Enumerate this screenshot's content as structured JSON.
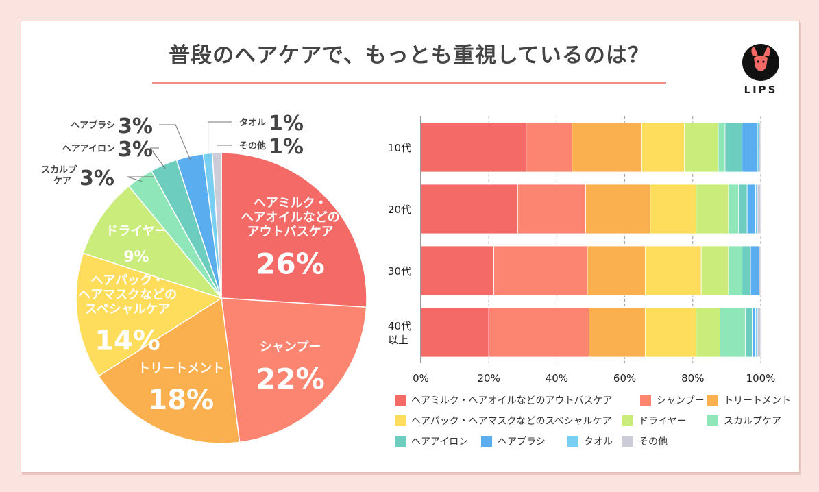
{
  "title": "普段のヘアケアで、もっとも重視しているのは？",
  "logo": {
    "text": "LIPS",
    "icon": "deer-face-icon"
  },
  "chart_data": [
    {
      "type": "pie",
      "slices": [
        {
          "label": "ヘアミルク・ヘアオイルなどのアウトバスケア",
          "value": 26,
          "text": "26%",
          "lines": [
            "ヘアミルク・",
            "ヘアオイルなどの",
            "アウトバスケア"
          ],
          "color": "#f36a66",
          "style": "inside"
        },
        {
          "label": "シャンプー",
          "value": 22,
          "text": "22%",
          "lines": [
            "シャンプー"
          ],
          "color": "#fc8572",
          "style": "inside"
        },
        {
          "label": "トリートメント",
          "value": 18,
          "text": "18%",
          "lines": [
            "トリートメント"
          ],
          "color": "#fbb04f",
          "style": "inside"
        },
        {
          "label": "ヘアパック・ヘアマスクなどのスペシャルケア",
          "value": 14,
          "text": "14%",
          "lines": [
            "ヘアパック・",
            "ヘアマスクなどの",
            "スペシャルケア"
          ],
          "color": "#fedc5c",
          "style": "inside"
        },
        {
          "label": "ドライヤー",
          "value": 9,
          "text": "9%",
          "lines": [
            "ドライヤー"
          ],
          "color": "#c9ec7b",
          "style": "inside"
        },
        {
          "label": "スカルプケア",
          "value": 3,
          "text": "3%",
          "lines": [
            "スカルプ",
            "ケア"
          ],
          "color": "#8fe6b9",
          "style": "outside"
        },
        {
          "label": "ヘアアイロン",
          "value": 3,
          "text": "3%",
          "lines": [
            "ヘアアイロン"
          ],
          "color": "#6dcdbf",
          "style": "outside"
        },
        {
          "label": "ヘアブラシ",
          "value": 3,
          "text": "3%",
          "lines": [
            "ヘアブラシ"
          ],
          "color": "#5aaef0",
          "style": "outside"
        },
        {
          "label": "タオル",
          "value": 1,
          "text": "1%",
          "lines": [
            "タオル"
          ],
          "color": "#79cff2",
          "style": "outside"
        },
        {
          "label": "その他",
          "value": 1,
          "text": "1%",
          "lines": [
            "その他"
          ],
          "color": "#ccccd8",
          "style": "outside"
        }
      ]
    },
    {
      "type": "bar",
      "orientation": "horizontal",
      "stacked": true,
      "categories": [
        [
          "10代"
        ],
        [
          "20代"
        ],
        [
          "30代"
        ],
        [
          "40代",
          "以上"
        ]
      ],
      "xlim": [
        0,
        100
      ],
      "xticks": [
        "0%",
        "20%",
        "40%",
        "60%",
        "80%",
        "100%"
      ],
      "series": [
        {
          "name": "ヘアミルク・ヘアオイルなどのアウトバスケア",
          "color": "#f36a66",
          "values": [
            31,
            28.5,
            21.5,
            20
          ]
        },
        {
          "name": "シャンプー",
          "color": "#fc8572",
          "values": [
            13.5,
            20,
            27.5,
            29.5
          ]
        },
        {
          "name": "トリートメント",
          "color": "#fbb04f",
          "values": [
            20.5,
            19,
            17,
            16.5
          ]
        },
        {
          "name": "ヘアパック・ヘアマスクなどのスペシャルケア",
          "color": "#fedc5c",
          "values": [
            12.5,
            13.5,
            16.5,
            15
          ]
        },
        {
          "name": "ドライヤー",
          "color": "#c9ec7b",
          "values": [
            10,
            9.5,
            8,
            7
          ]
        },
        {
          "name": "スカルプケア",
          "color": "#8fe6b9",
          "values": [
            2,
            3,
            4,
            7.5
          ]
        },
        {
          "name": "ヘアアイロン",
          "color": "#6dcdbf",
          "values": [
            5,
            2.5,
            2.5,
            2
          ]
        },
        {
          "name": "ヘアブラシ",
          "color": "#5aaef0",
          "values": [
            4.5,
            2.5,
            2.5,
            1
          ]
        },
        {
          "name": "タオル",
          "color": "#79cff2",
          "values": [
            0.5,
            0.5,
            0,
            0.5
          ]
        },
        {
          "name": "その他",
          "color": "#ccccd8",
          "values": [
            0.5,
            1,
            0.5,
            1
          ]
        }
      ]
    }
  ],
  "legend": [
    [
      "ヘアミルク・ヘアオイルなどのアウトバスケア",
      "シャンプー",
      "トリートメント"
    ],
    [
      "ヘアパック・ヘアマスクなどのスペシャルケア",
      "ドライヤー",
      "スカルプケア"
    ],
    [
      "ヘアアイロン",
      "ヘアブラシ",
      "タオル",
      "その他"
    ]
  ]
}
